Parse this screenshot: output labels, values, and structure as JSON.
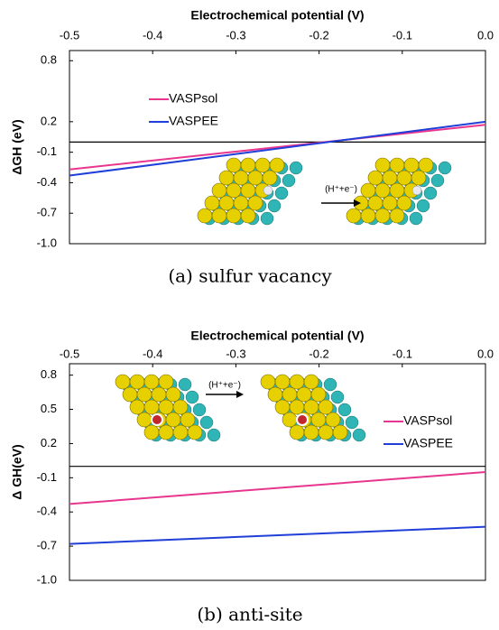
{
  "chart_data": [
    {
      "type": "line",
      "title": "Electrochemical potential (V)",
      "ylabel": "ΔGH (eV)",
      "caption": "(a) sulfur vacancy",
      "annotation": "(H⁺+e⁻)",
      "x": [
        -0.5,
        0.0
      ],
      "series": [
        {
          "name": "VASPsol",
          "color": "#e8368f",
          "values": [
            -0.27,
            0.17
          ]
        },
        {
          "name": "VASPEE",
          "color": "#1f3fd8",
          "values": [
            -0.33,
            0.2
          ]
        }
      ],
      "xlim": [
        -0.5,
        0.0
      ],
      "xticks": [
        -0.5,
        -0.4,
        -0.3,
        -0.2,
        -0.1,
        {
          "value": 0,
          "label": "0.0"
        }
      ],
      "ylim": [
        -1.0,
        0.9
      ],
      "yticks": [
        0.8,
        0.2,
        -0.1,
        -0.4,
        -0.7,
        {
          "value": -1,
          "label": "-1.0"
        }
      ],
      "legend_loc": "upper left"
    },
    {
      "type": "line",
      "title": "Electrochemical potential (V)",
      "ylabel": "Δ GH(eV)",
      "caption": "(b) anti-site",
      "annotation": "(H⁺+e⁻)",
      "x": [
        -0.5,
        0.0
      ],
      "series": [
        {
          "name": "VASPsol",
          "color": "#e8368f",
          "values": [
            -0.33,
            -0.05
          ]
        },
        {
          "name": "VASPEE",
          "color": "#1f3fd8",
          "values": [
            -0.68,
            -0.53
          ]
        }
      ],
      "xlim": [
        -0.5,
        0.0
      ],
      "xticks": [
        -0.5,
        -0.4,
        -0.3,
        -0.2,
        -0.1,
        {
          "value": 0,
          "label": "0.0"
        }
      ],
      "ylim": [
        -1.0,
        0.9
      ],
      "yticks": [
        0.8,
        0.5,
        0.2,
        -0.1,
        -0.4,
        -0.7,
        {
          "value": -1,
          "label": "-1.0"
        }
      ],
      "legend_loc": "center right"
    }
  ]
}
